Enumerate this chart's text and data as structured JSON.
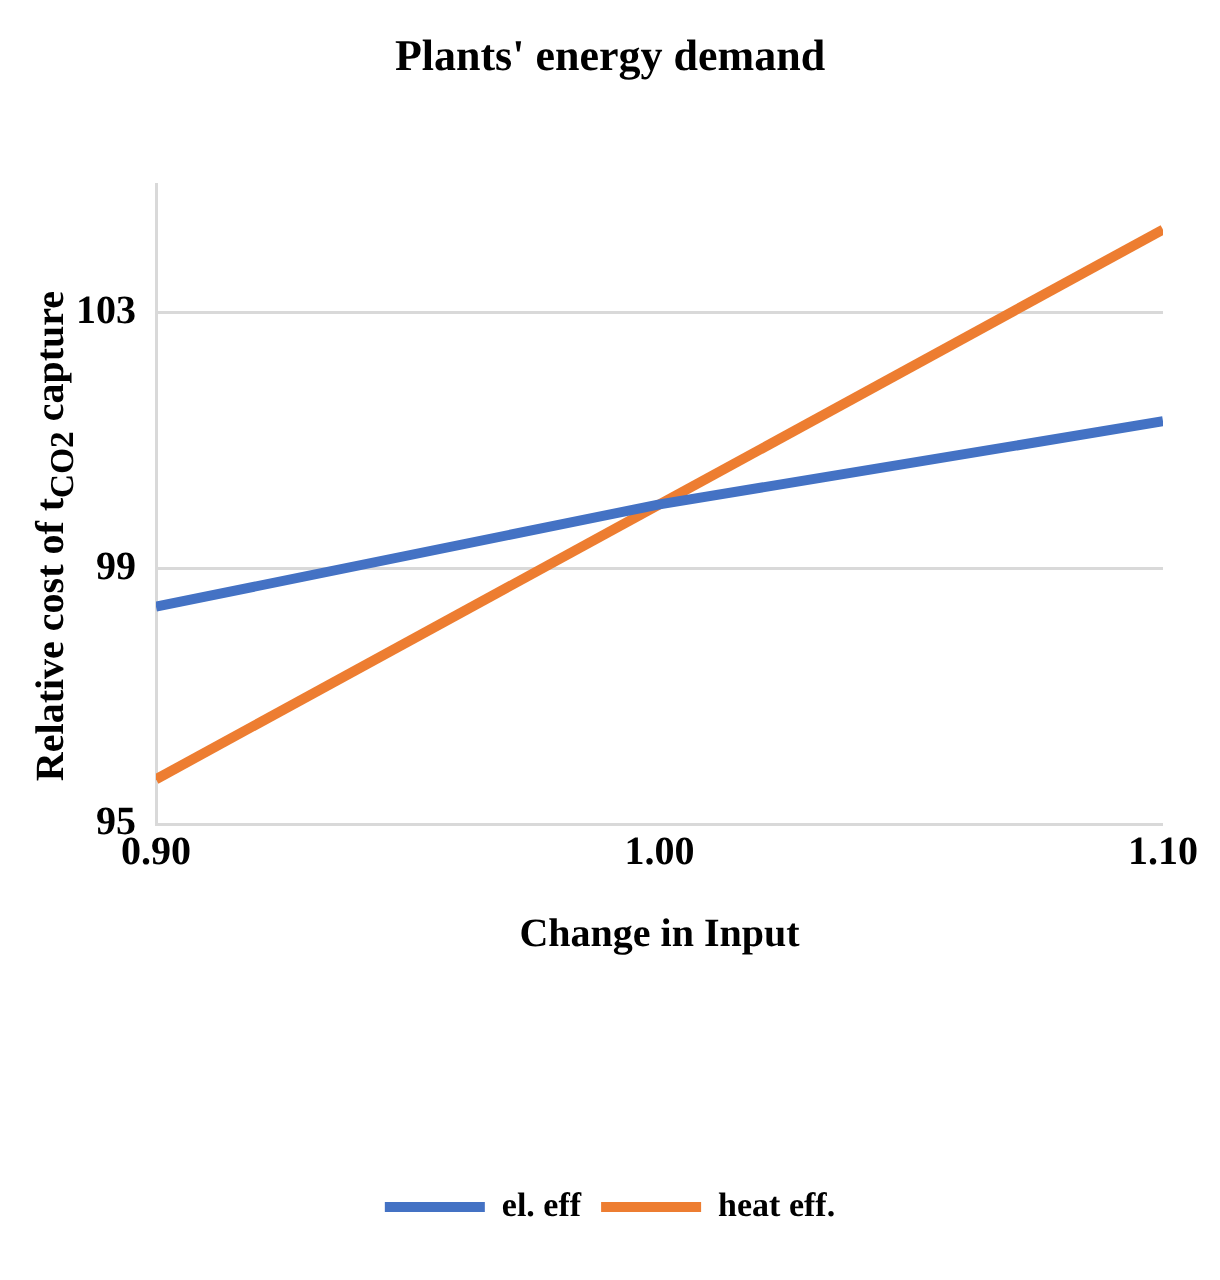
{
  "chart_data": {
    "type": "line",
    "title": "Plants' energy demand",
    "xlabel": "Change in Input",
    "ylabel": "Relative cost of t$_{CO2}$ capture",
    "x": [
      0.9,
      1.0,
      1.1
    ],
    "series": [
      {
        "name": "el. eff",
        "color": "#4472c4",
        "values": [
          98.4,
          100.0,
          101.3
        ]
      },
      {
        "name": "heat eff.",
        "color": "#ed7d31",
        "values": [
          95.7,
          100.0,
          104.3
        ]
      }
    ],
    "xlim": [
      0.9,
      1.1
    ],
    "xticks": [
      {
        "value": 0.9,
        "label": "0.90"
      },
      {
        "value": 1.0,
        "label": "1.00"
      },
      {
        "value": 1.1,
        "label": "1.10"
      }
    ],
    "ylim": [
      95,
      105
    ],
    "yticks": [
      95,
      99,
      103
    ],
    "grid": "y",
    "legend": "bottom",
    "marker": "none",
    "line_style": "solid"
  }
}
